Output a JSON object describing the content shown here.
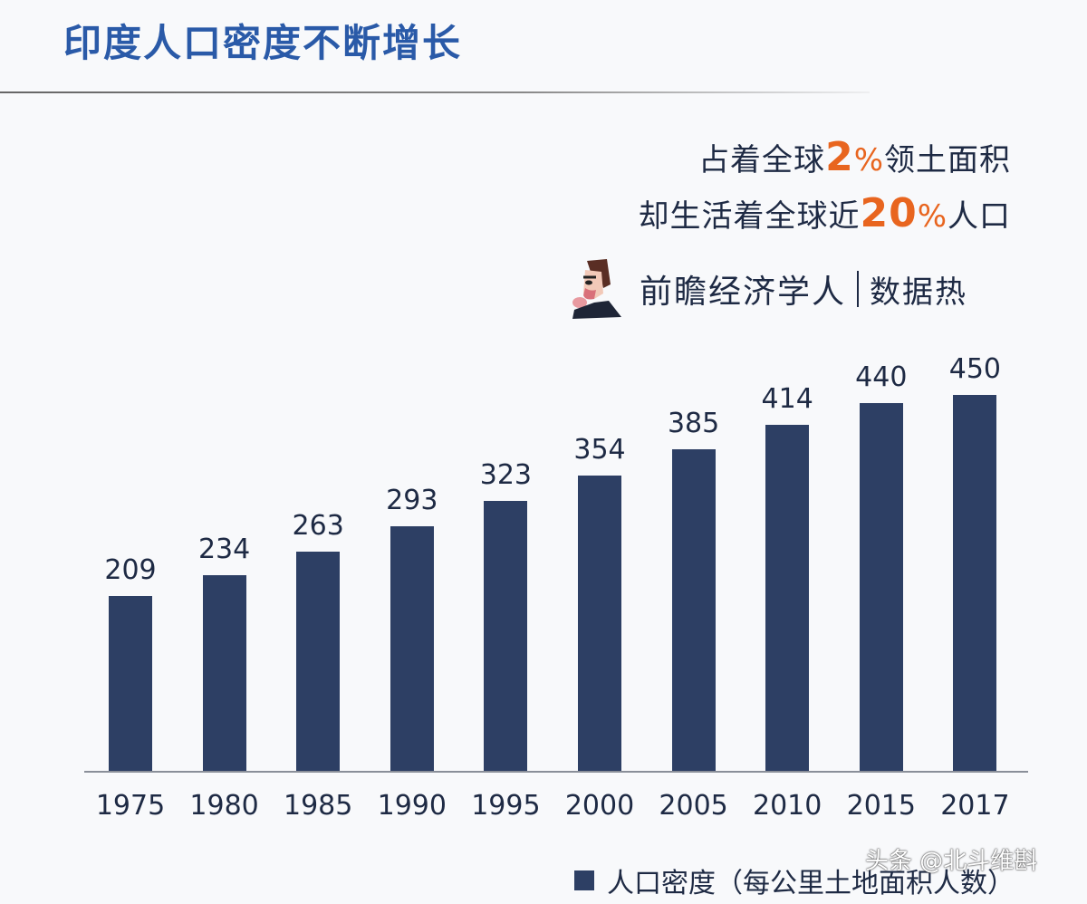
{
  "title": "印度人口密度不断增长",
  "tagline": {
    "line1_prefix": "占着全球",
    "line1_number": "2",
    "line1_pct": "%",
    "line1_suffix": "领土面积",
    "line2_prefix": "却生活着全球近",
    "line2_number": "20",
    "line2_pct": "%",
    "line2_suffix": "人口"
  },
  "brand": {
    "icon": "cartoon-man-avatar-icon",
    "name": "前瞻经济学人",
    "sub": "数据热"
  },
  "legend": {
    "label": "人口密度（每公里土地面积人数）",
    "color": "#2d3f64"
  },
  "watermark": "头条 @北斗维斟",
  "colors": {
    "title": "#2a5aa8",
    "highlight": "#e8651f",
    "bar": "#2d3f64",
    "text": "#1e2a44"
  },
  "chart_data": {
    "type": "bar",
    "title": "印度人口密度不断增长",
    "categories": [
      "1975",
      "1980",
      "1985",
      "1990",
      "1995",
      "2000",
      "2005",
      "2010",
      "2015",
      "2017"
    ],
    "values": [
      209,
      234,
      263,
      293,
      323,
      354,
      385,
      414,
      440,
      450
    ],
    "series": [
      {
        "name": "人口密度（每公里土地面积人数）",
        "values": [
          209,
          234,
          263,
          293,
          323,
          354,
          385,
          414,
          440,
          450
        ]
      }
    ],
    "xlabel": "",
    "ylabel": "",
    "ylim": [
      0,
      480
    ],
    "grid": false,
    "data_labels": true,
    "legend_position": "bottom-right",
    "annotations": [
      "占着全球2%领土面积",
      "却生活着全球近20%人口",
      "前瞻经济学人 | 数据热"
    ]
  }
}
